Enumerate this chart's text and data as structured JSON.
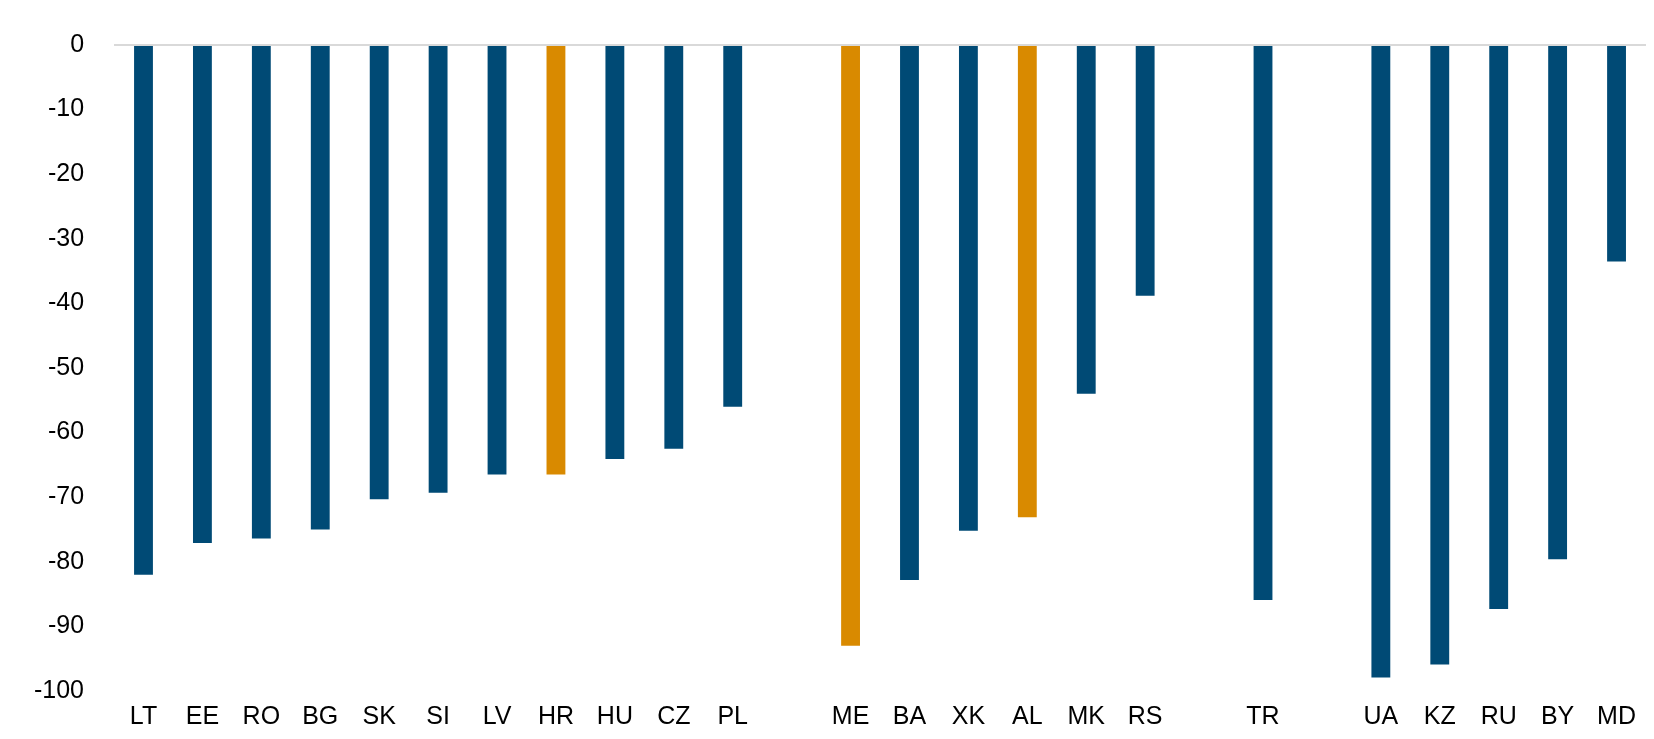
{
  "chart_data": {
    "type": "bar",
    "categories": [
      "LT",
      "EE",
      "RO",
      "BG",
      "SK",
      "SI",
      "LV",
      "HR",
      "HU",
      "CZ",
      "PL",
      null,
      "ME",
      "BA",
      "XK",
      "AL",
      "MK",
      "RS",
      null,
      "TR",
      null,
      "UA",
      "KZ",
      "RU",
      "BY",
      "MD"
    ],
    "values": [
      -82.0,
      -77.1,
      -76.4,
      -75.0,
      -70.3,
      -69.3,
      -66.5,
      -66.5,
      -64.1,
      -62.5,
      -56.0,
      null,
      -93.0,
      -82.8,
      -75.2,
      -73.1,
      -54.0,
      -38.8,
      null,
      -85.9,
      null,
      -97.9,
      -95.9,
      -87.3,
      -79.6,
      -33.5
    ],
    "colors": [
      "#004a75",
      "#004a75",
      "#004a75",
      "#004a75",
      "#004a75",
      "#004a75",
      "#004a75",
      "#d98a00",
      "#004a75",
      "#004a75",
      "#004a75",
      "#004a75",
      "#d98a00",
      "#004a75",
      "#004a75",
      "#d98a00",
      "#004a75",
      "#004a75",
      "#004a75",
      "#004a75",
      "#004a75",
      "#004a75",
      "#004a75",
      "#004a75",
      "#004a75",
      "#004a75"
    ],
    "ylim": [
      -100,
      0
    ],
    "yticks": [
      -100,
      -90,
      -80,
      -70,
      -60,
      -50,
      -40,
      -30,
      -20,
      -10,
      0
    ],
    "legend": false
  }
}
